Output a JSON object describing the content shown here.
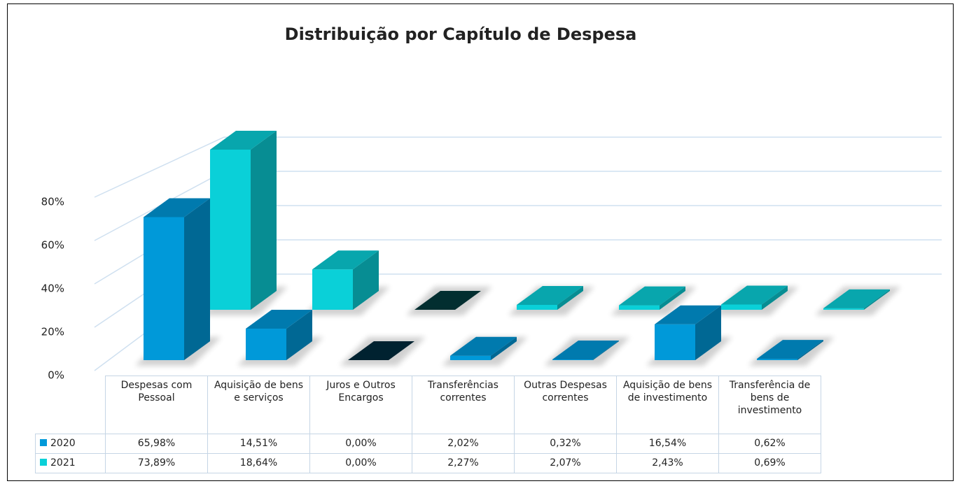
{
  "chart_data": {
    "type": "bar3d",
    "title": "Distribuição por Capítulo de Despesa",
    "categories": [
      "Despesas com Pessoal",
      "Aquisição de bens e serviços",
      "Juros e Outros Encargos",
      "Transferências correntes",
      "Outras Despesas correntes",
      "Aquisição de bens de investimento",
      "Transferência de bens de investimento"
    ],
    "series": [
      {
        "name": "2020",
        "color": "#0099d9",
        "values": [
          65.98,
          14.51,
          0,
          2.02,
          0.32,
          16.54,
          0.62
        ],
        "value_labels": [
          "65,98%",
          "14,51%",
          "0,00%",
          "2,02%",
          "0,32%",
          "16,54%",
          "0,62%"
        ]
      },
      {
        "name": "2021",
        "color": "#0ad0d8",
        "values": [
          73.89,
          18.64,
          0,
          2.27,
          2.07,
          2.43,
          0.69
        ],
        "value_labels": [
          "73,89%",
          "18,64%",
          "0,00%",
          "2,27%",
          "2,07%",
          "2,43%",
          "0,69%"
        ]
      }
    ],
    "ylim": [
      0,
      100
    ],
    "yticks": [
      {
        "value": 0,
        "label": "0%"
      },
      {
        "value": 20,
        "label": "20%"
      },
      {
        "value": 40,
        "label": "40%"
      },
      {
        "value": 60,
        "label": "60%"
      },
      {
        "value": 80,
        "label": "80%"
      }
    ],
    "grid": true
  }
}
